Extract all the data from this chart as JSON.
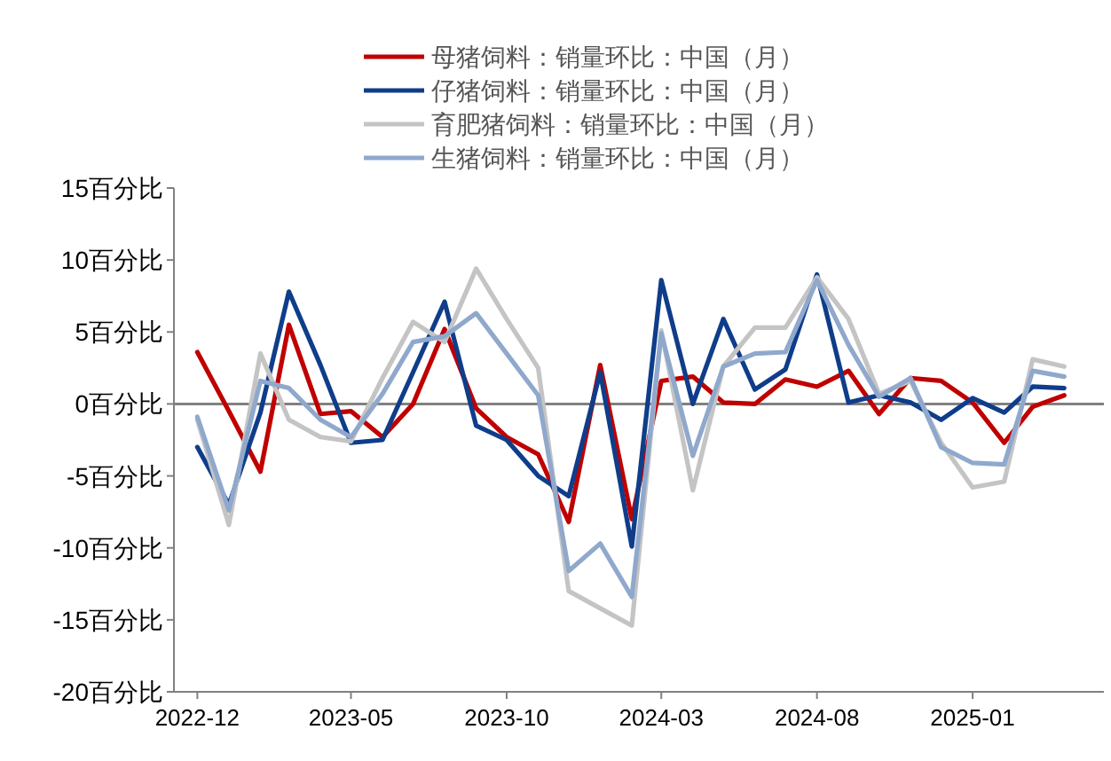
{
  "chart_data": {
    "type": "line",
    "x": [
      "2022-12",
      "2023-01",
      "2023-02",
      "2023-03",
      "2023-04",
      "2023-05",
      "2023-06",
      "2023-07",
      "2023-08",
      "2023-09",
      "2023-10",
      "2023-11",
      "2023-12",
      "2024-01",
      "2024-02",
      "2024-03",
      "2024-04",
      "2024-05",
      "2024-06",
      "2024-07",
      "2024-08",
      "2024-09",
      "2024-10",
      "2024-11",
      "2024-12",
      "2025-01",
      "2025-02",
      "2025-03",
      "2025-04"
    ],
    "series": [
      {
        "name": "母猪饲料：销量环比：中国（月）",
        "color": "#c00000",
        "values": [
          3.6,
          -0.5,
          -4.7,
          5.5,
          -0.7,
          -0.5,
          -2.3,
          0,
          5.2,
          -0.3,
          -2.3,
          -3.5,
          -8.2,
          2.7,
          -8.0,
          1.6,
          1.9,
          0.1,
          0,
          1.7,
          1.2,
          2.3,
          -0.7,
          1.8,
          1.6,
          0.1,
          -2.7,
          -0.2,
          0.6
        ]
      },
      {
        "name": "仔猪饲料：销量环比：中国（月）",
        "color": "#0f3d8a",
        "values": [
          -3.0,
          -7.0,
          -0.6,
          7.8,
          2.7,
          -2.7,
          -2.5,
          2.2,
          7.1,
          -1.5,
          -2.5,
          -5.0,
          -6.4,
          2.2,
          -9.9,
          8.6,
          0,
          5.9,
          1.0,
          2.4,
          9.0,
          0.1,
          0.6,
          0.1,
          -1.1,
          0.4,
          -0.6,
          1.2,
          1.1
        ]
      },
      {
        "name": "育肥猪饲料：销量环比：中国（月）",
        "color": "#c4c4c4",
        "values": [
          -1.1,
          -8.4,
          3.5,
          -1.1,
          -2.3,
          -2.6,
          1.8,
          5.7,
          4.3,
          9.4,
          5.9,
          2.5,
          -13.0,
          -14.2,
          -15.4,
          5.1,
          -6.0,
          2.6,
          5.3,
          5.3,
          8.8,
          5.9,
          0.7,
          1.6,
          -2.7,
          -5.8,
          -5.4,
          3.1,
          2.6
        ]
      },
      {
        "name": "生猪饲料：销量环比：中国（月）",
        "color": "#8fa8cc",
        "values": [
          -0.9,
          -7.4,
          1.6,
          1.1,
          -1.1,
          -2.3,
          0.7,
          4.3,
          4.7,
          6.3,
          3.5,
          0.6,
          -11.6,
          -9.7,
          -13.4,
          4.9,
          -3.6,
          2.6,
          3.5,
          3.6,
          8.6,
          4.1,
          0.5,
          1.8,
          -3.0,
          -4.1,
          -4.2,
          2.3,
          1.9
        ]
      }
    ],
    "xlim": [
      "2022-11-08",
      "2025-05-10"
    ],
    "xticks": [
      {
        "value": "2022-12",
        "label": "2022-12"
      },
      {
        "value": "2023-05",
        "label": "2023-05"
      },
      {
        "value": "2023-10",
        "label": "2023-10"
      },
      {
        "value": "2024-03",
        "label": "2024-03"
      },
      {
        "value": "2024-08",
        "label": "2024-08"
      },
      {
        "value": "2025-01",
        "label": "2025-01"
      }
    ],
    "ylim": [
      -20,
      15
    ],
    "yticks": [
      {
        "value": 15,
        "label": "15百分比"
      },
      {
        "value": 10,
        "label": "10百分比"
      },
      {
        "value": 5,
        "label": "5百分比"
      },
      {
        "value": 0,
        "label": "0百分比"
      },
      {
        "value": -5,
        "label": "-5百分比"
      },
      {
        "value": -10,
        "label": "-10百分比"
      },
      {
        "value": -15,
        "label": "-15百分比"
      },
      {
        "value": -20,
        "label": "-20百分比"
      }
    ],
    "ref_lines": [
      {
        "axis": "y",
        "value": 0,
        "color": "#808080"
      }
    ],
    "legend": "top",
    "grid": false,
    "line_style": "solid"
  }
}
